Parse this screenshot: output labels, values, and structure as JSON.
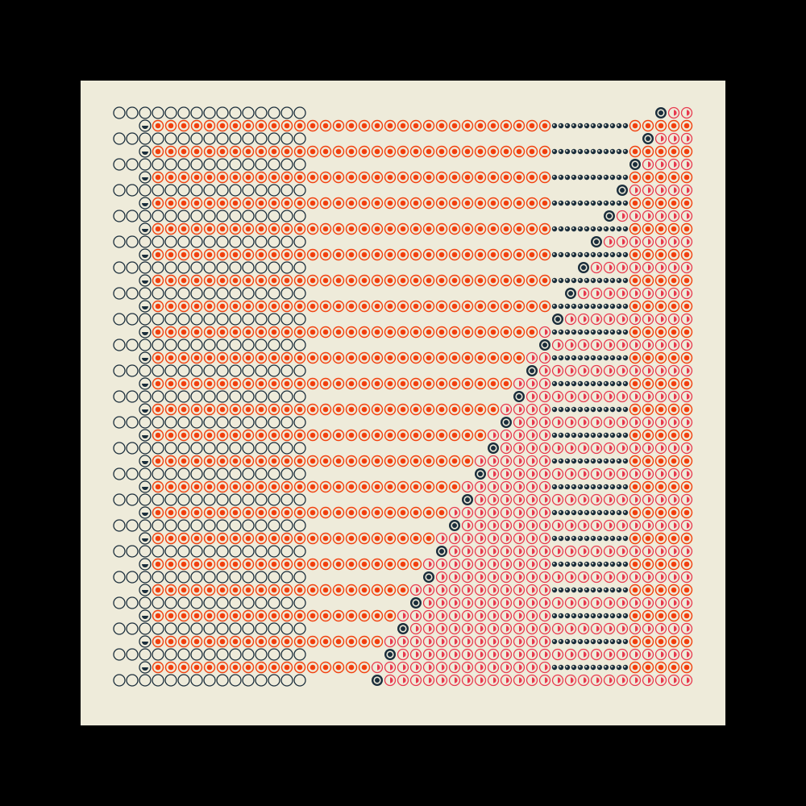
{
  "artwork": {
    "type": "generative-dot-grid",
    "columns": 45,
    "rows": 45,
    "background_color": "#000000",
    "panel_color": "#EEEBDA",
    "colors": {
      "dark_navy": "#1B2E3C",
      "vermilion": "#F2400E",
      "coral": "#E8394E"
    },
    "row_pattern": [
      "outline-circles-row",
      "dotted-orange-row"
    ],
    "staircase": {
      "top_row_marker_column": 42,
      "bottom_row_marker_column": 21,
      "step_columns_per_row": 1
    },
    "regions": [
      "navy-outline-circle-block-left",
      "orange-ring-dot-bands",
      "small-navy-dot-bands-right",
      "coral-half-ring-staircase",
      "navy-marker-diagonal"
    ]
  }
}
